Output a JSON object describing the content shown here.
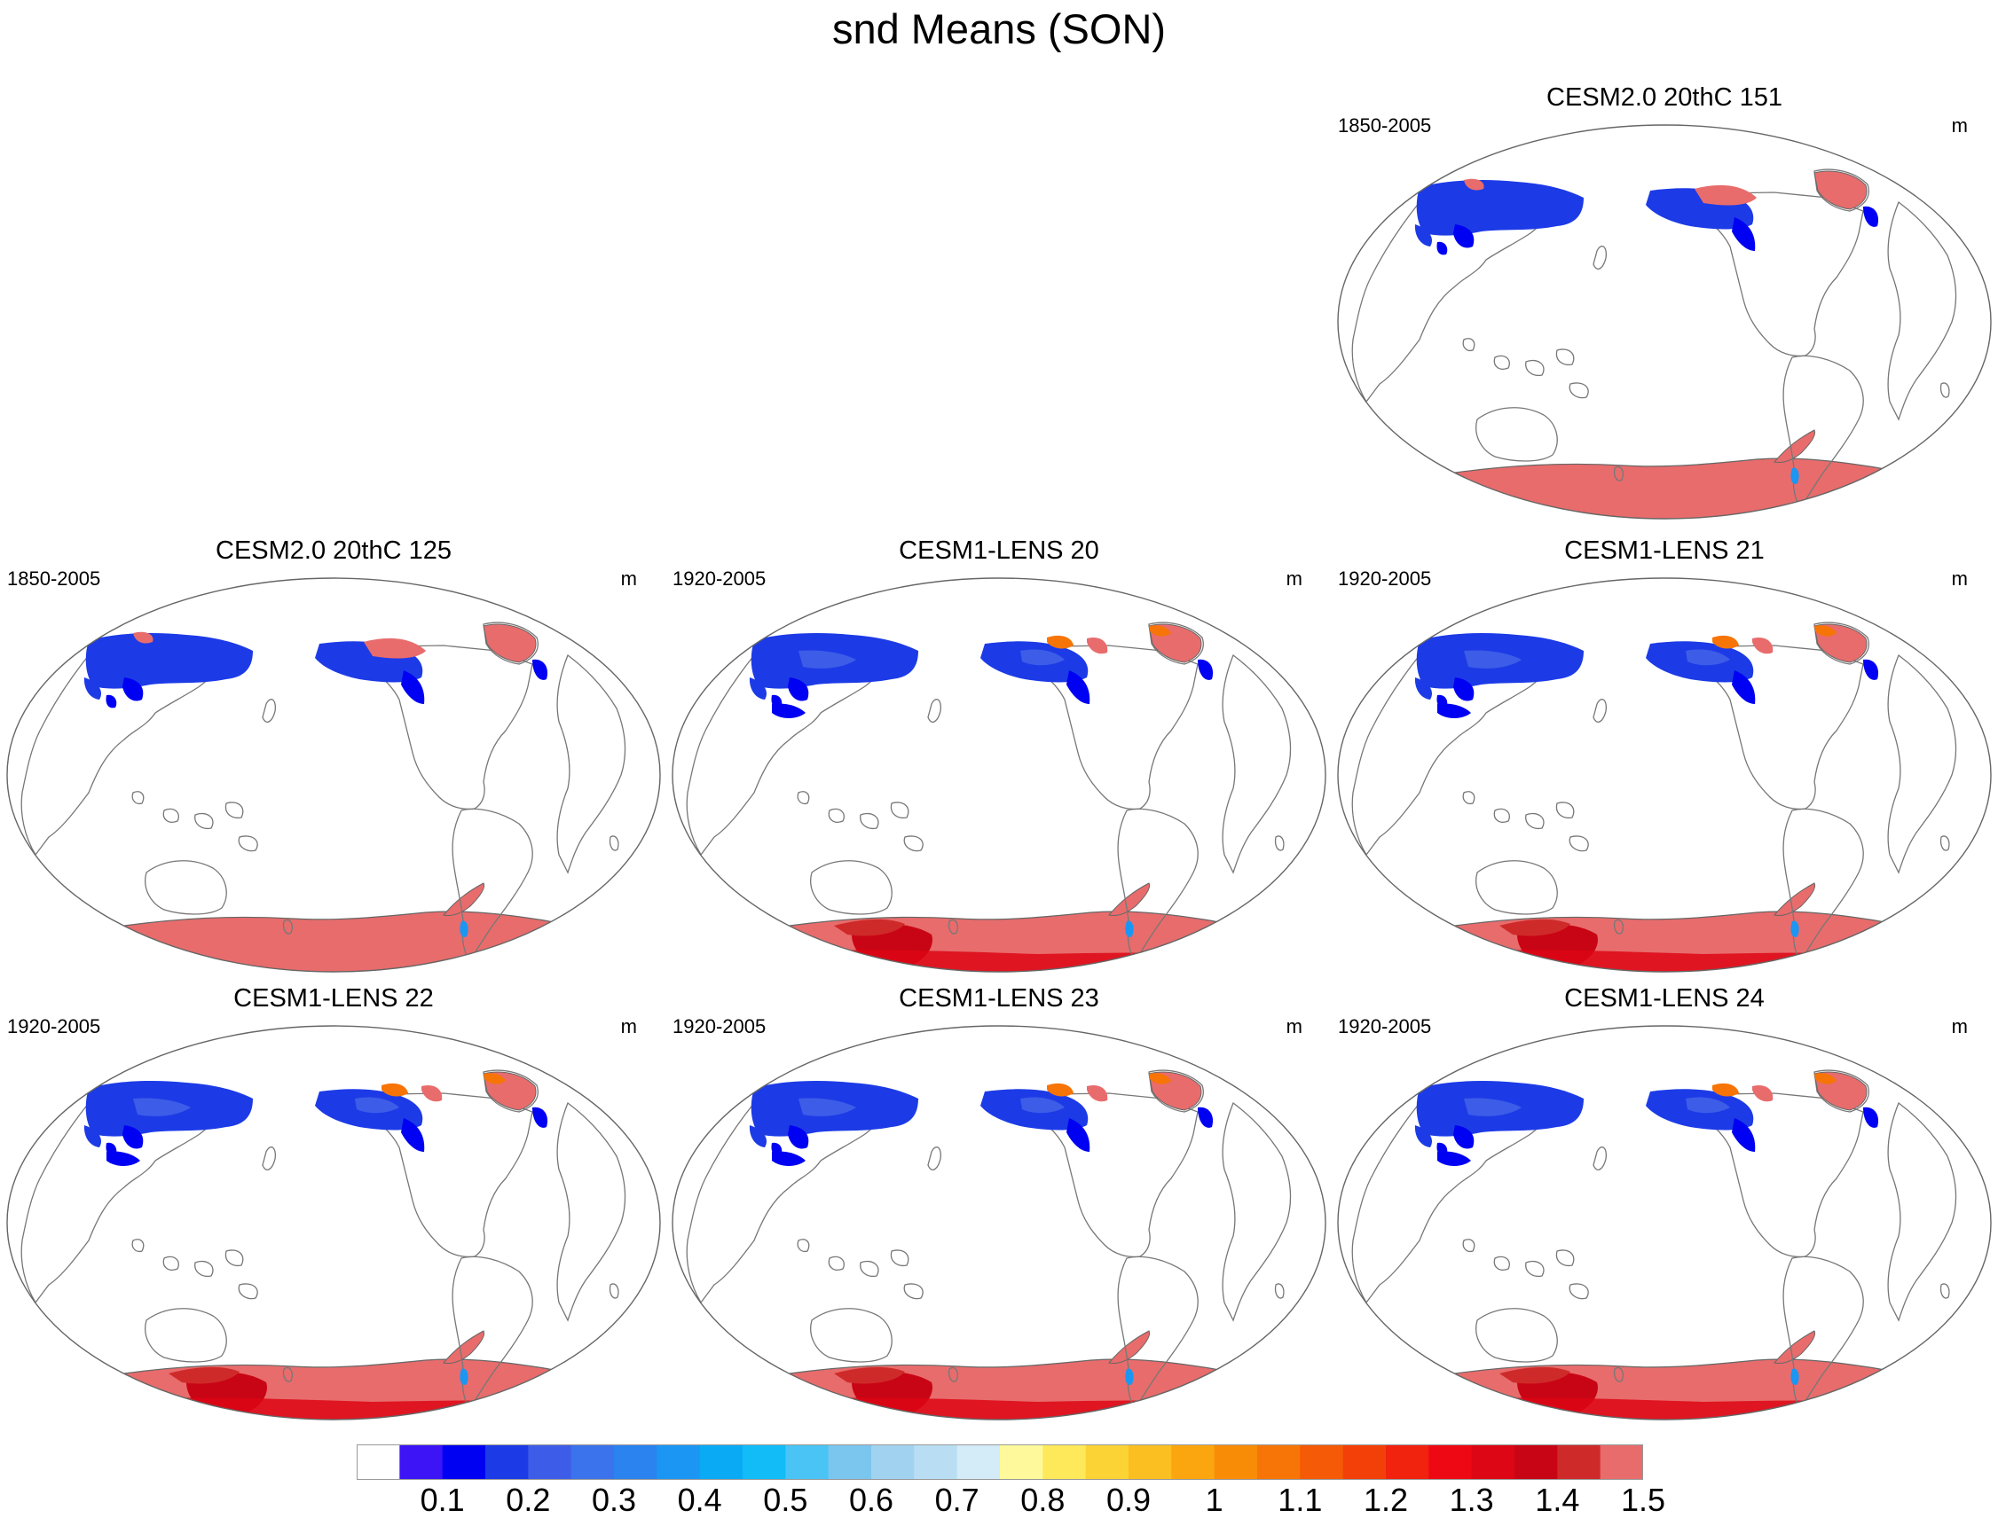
{
  "title": "snd Means (SON)",
  "units": "m",
  "panels": [
    {
      "id": "p1",
      "title": "CESM2.0 20thC 151",
      "period": "1850-2005",
      "unit": "m",
      "style": "cesm2"
    },
    {
      "id": "p2",
      "title": "CESM2.0 20thC 125",
      "period": "1850-2005",
      "unit": "m",
      "style": "cesm2"
    },
    {
      "id": "p3",
      "title": "CESM1-LENS 20",
      "period": "1920-2005",
      "unit": "m",
      "style": "lens"
    },
    {
      "id": "p4",
      "title": "CESM1-LENS 21",
      "period": "1920-2005",
      "unit": "m",
      "style": "lens"
    },
    {
      "id": "p5",
      "title": "CESM1-LENS 22",
      "period": "1920-2005",
      "unit": "m",
      "style": "lens"
    },
    {
      "id": "p6",
      "title": "CESM1-LENS 23",
      "period": "1920-2005",
      "unit": "m",
      "style": "lens"
    },
    {
      "id": "p7",
      "title": "CESM1-LENS 24",
      "period": "1920-2005",
      "unit": "m",
      "style": "lens"
    }
  ],
  "colorbar": {
    "colors": [
      "#ffffff",
      "#3c14f5",
      "#0000f2",
      "#1c3be6",
      "#3d5ce8",
      "#3a73ec",
      "#2a83ef",
      "#1b96f3",
      "#0aaaf5",
      "#12bcf7",
      "#4ac4f4",
      "#7ac6ef",
      "#a1d3f0",
      "#b9def3",
      "#d4ebf8",
      "#fefa9b",
      "#fde95a",
      "#fcd334",
      "#fbbf21",
      "#fba60f",
      "#f98c06",
      "#f77406",
      "#f55a06",
      "#f34009",
      "#f1220e",
      "#ee0813",
      "#dd0614",
      "#c80514",
      "#cf2a2a",
      "#e86c6c"
    ],
    "labels": [
      "0.1",
      "0.2",
      "0.3",
      "0.4",
      "0.5",
      "0.6",
      "0.7",
      "0.8",
      "0.9",
      "1",
      "1.1",
      "1.2",
      "1.3",
      "1.4",
      "1.5"
    ]
  }
}
